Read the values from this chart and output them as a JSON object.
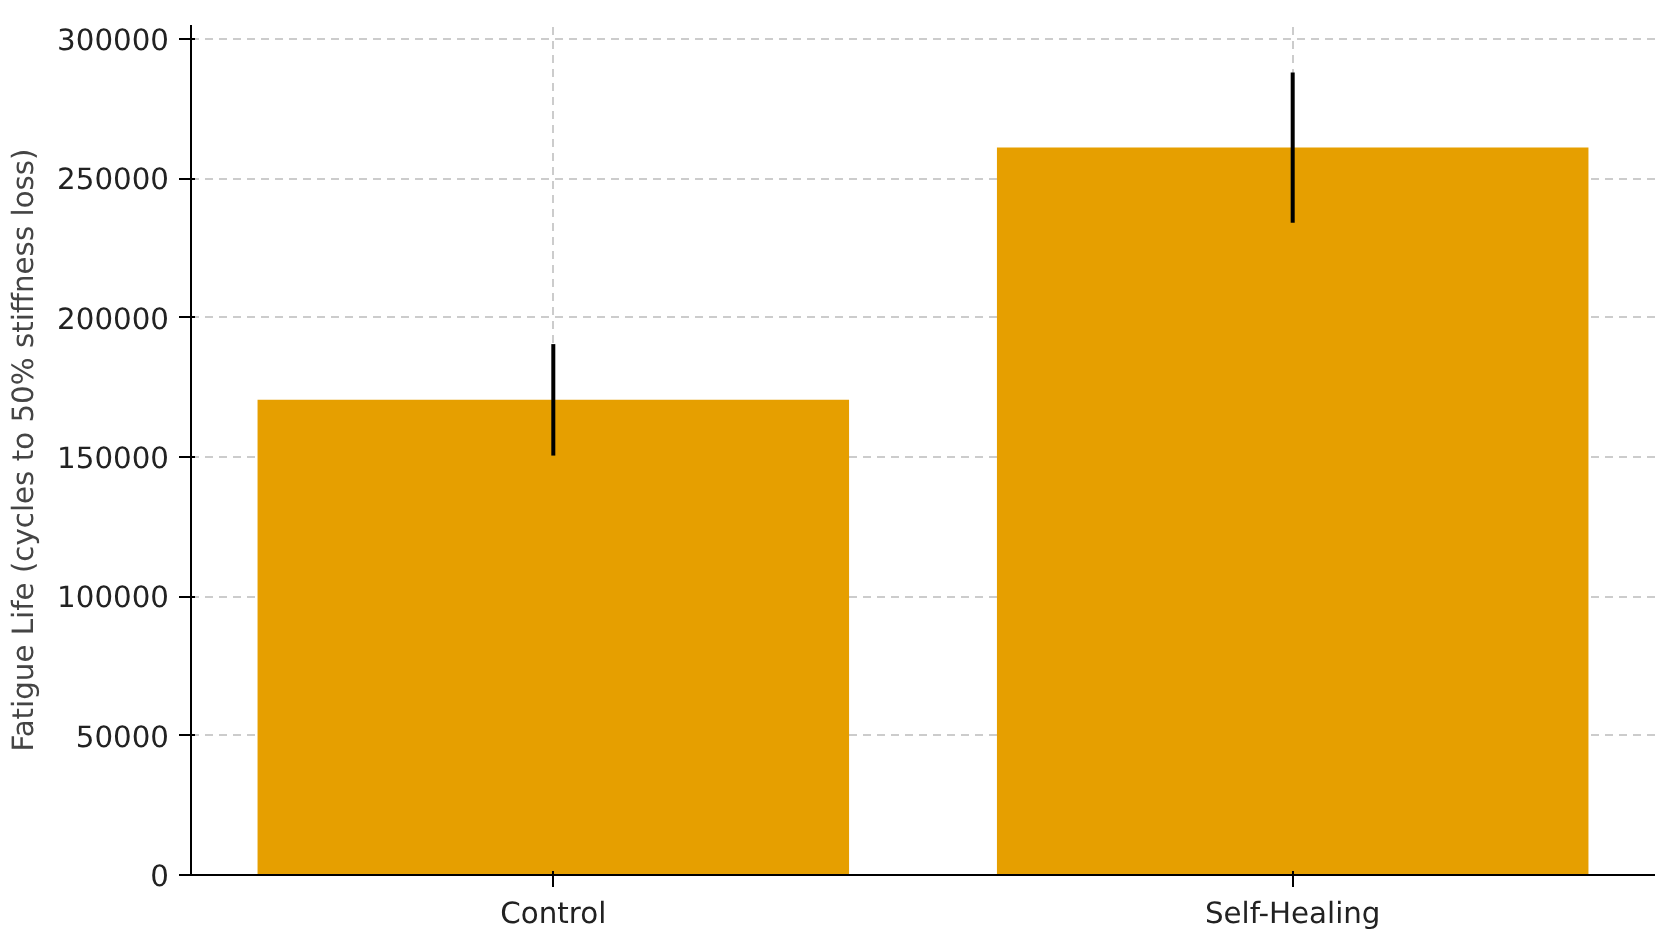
{
  "chart_data": {
    "type": "bar",
    "ylabel": "Fatigue Life (cycles to 50% stiffness loss)",
    "categories": [
      "Control",
      "Self-Healing"
    ],
    "values": [
      170500,
      261000
    ],
    "errors": [
      20000,
      27000
    ],
    "color": "#e69f00",
    "ylim": [
      0,
      305000
    ],
    "yticks": [
      0,
      50000,
      100000,
      150000,
      200000,
      250000,
      300000
    ],
    "grid": true
  }
}
